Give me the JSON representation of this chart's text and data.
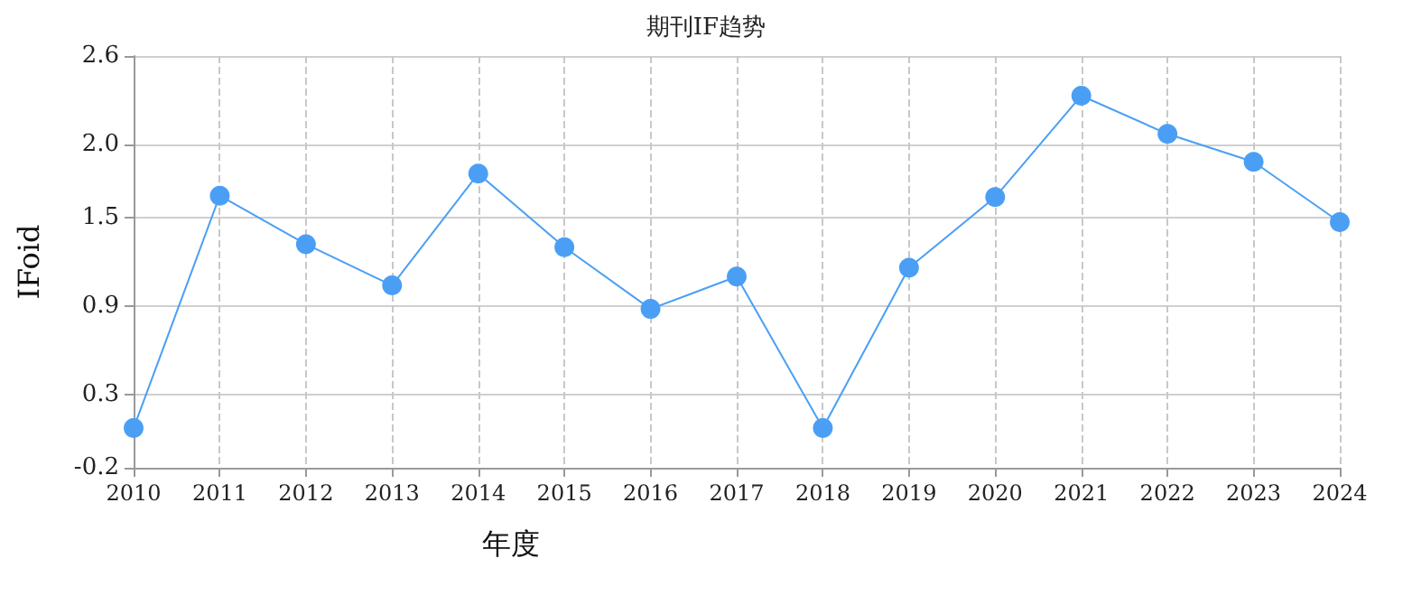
{
  "chart_data": {
    "type": "line",
    "title": "期刊IF趋势",
    "xlabel": "年度",
    "ylabel": "IFoid",
    "categories": [
      "2010",
      "2011",
      "2012",
      "2013",
      "2014",
      "2015",
      "2016",
      "2017",
      "2018",
      "2019",
      "2020",
      "2021",
      "2022",
      "2023",
      "2024"
    ],
    "series": [
      {
        "color": "#4a9ff5",
        "values": [
          0.07,
          1.65,
          1.32,
          1.04,
          1.8,
          1.3,
          0.88,
          1.1,
          0.07,
          1.16,
          1.64,
          2.33,
          2.07,
          1.88,
          1.47
        ]
      }
    ],
    "ylim": [
      -0.2,
      2.6
    ],
    "yticks": [
      -0.2,
      0.3,
      0.9,
      1.5,
      {
        "value": 2.0,
        "label": "2.0"
      },
      2.6
    ],
    "grid": true,
    "marker": "circle",
    "line_style": "solid"
  }
}
